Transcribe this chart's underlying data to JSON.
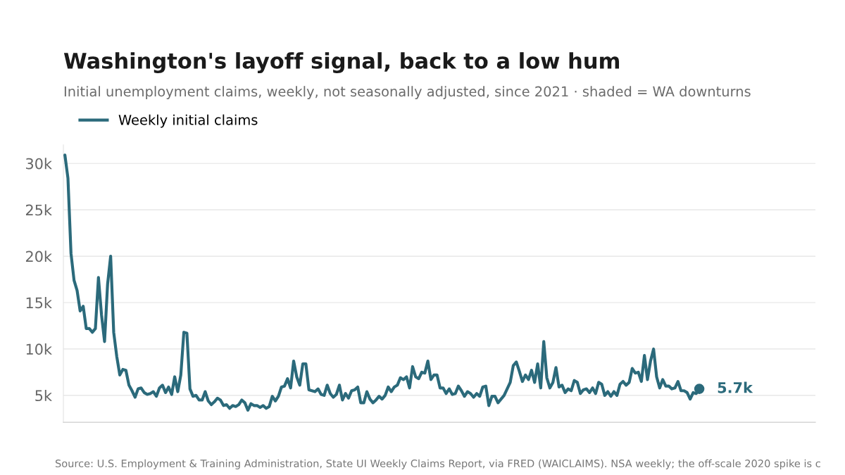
{
  "chart_data": {
    "type": "line",
    "title": "Washington's layoff signal, back to a low hum",
    "subtitle": "Initial unemployment claims, weekly, not seasonally adjusted, since 2021 · shaded = WA downturns",
    "categories": [
      null,
      null,
      null,
      null,
      null,
      null,
      null,
      null,
      null,
      null,
      null,
      null,
      null,
      null,
      null,
      null,
      null,
      null,
      null,
      null,
      null,
      null,
      null,
      null,
      null,
      null,
      null,
      null,
      null,
      null,
      null,
      null,
      null,
      null,
      null,
      null,
      null,
      null,
      null,
      null,
      null,
      null,
      null,
      null,
      null,
      null,
      null,
      null,
      null,
      null,
      null,
      null,
      null,
      null,
      null,
      null,
      null,
      null,
      null,
      null,
      null,
      null,
      null,
      null,
      null,
      null,
      null,
      null,
      null,
      null,
      null,
      null,
      null,
      null,
      null,
      null,
      null,
      null,
      null,
      null,
      null,
      null,
      null,
      null,
      null,
      null,
      null,
      null,
      null,
      null,
      null,
      null,
      null,
      null,
      null,
      null,
      null,
      null,
      null,
      null,
      null,
      null,
      null,
      null,
      null,
      null,
      null,
      null,
      null,
      null,
      null,
      null,
      null,
      null,
      null,
      null,
      null,
      null,
      null,
      null,
      null,
      null,
      null,
      null,
      null,
      null,
      null,
      null,
      null,
      null,
      null,
      null,
      null,
      null,
      null,
      null,
      null,
      null,
      null,
      null,
      null,
      null,
      null,
      null,
      null,
      null,
      null,
      null,
      null,
      null,
      null,
      null,
      null,
      null,
      null,
      null,
      null,
      null,
      null,
      null,
      null,
      null,
      null,
      null,
      null,
      null,
      null,
      null,
      null,
      null,
      null,
      null,
      null,
      null,
      null,
      null,
      null,
      null,
      null,
      null,
      null,
      null,
      null,
      null,
      null,
      null,
      null,
      null,
      null,
      null,
      null,
      null,
      null,
      null,
      null,
      null,
      null,
      null,
      null,
      null,
      null,
      null,
      null,
      null,
      null,
      null,
      null,
      null,
      null
    ],
    "series": [
      {
        "name": "Weekly initial claims",
        "color": "#2b6a7b",
        "values": [
          30900,
          28400,
          20300,
          17400,
          16300,
          14100,
          14600,
          12200,
          12200,
          11800,
          12200,
          17700,
          13700,
          10800,
          17000,
          20000,
          11800,
          9200,
          7200,
          7800,
          7700,
          6100,
          5500,
          4800,
          5700,
          5800,
          5300,
          5100,
          5200,
          5400,
          4900,
          5800,
          6100,
          5300,
          5900,
          5100,
          7000,
          5400,
          7200,
          11800,
          11700,
          5700,
          4900,
          5000,
          4500,
          4500,
          5400,
          4400,
          4000,
          4300,
          4700,
          4500,
          3900,
          4000,
          3600,
          3900,
          3800,
          4000,
          4500,
          4200,
          3400,
          4100,
          3900,
          3900,
          3700,
          3900,
          3600,
          3800,
          4900,
          4400,
          4900,
          5900,
          6000,
          6800,
          5800,
          8700,
          7000,
          6100,
          8400,
          8400,
          5600,
          5500,
          5400,
          5700,
          5100,
          5000,
          6100,
          5200,
          4800,
          5100,
          6100,
          4500,
          5200,
          4700,
          5500,
          5600,
          5900,
          4200,
          4200,
          5400,
          4600,
          4200,
          4500,
          4900,
          4600,
          5000,
          5900,
          5400,
          5900,
          6100,
          6900,
          6700,
          7000,
          5800,
          8100,
          7000,
          6800,
          7500,
          7400,
          8700,
          6700,
          7200,
          7200,
          5800,
          5800,
          5200,
          5700,
          5100,
          5200,
          6000,
          5500,
          4900,
          5400,
          5200,
          4800,
          5200,
          4900,
          5900,
          6000,
          3900,
          4900,
          4900,
          4200,
          4600,
          5000,
          5700,
          6400,
          8200,
          8600,
          7600,
          6500,
          7200,
          6700,
          7700,
          6400,
          8400,
          5800,
          10800,
          6900,
          5800,
          6400,
          8000,
          5900,
          6100,
          5300,
          5700,
          5500,
          6600,
          6400,
          5200,
          5600,
          5700,
          5300,
          5800,
          5200,
          6400,
          6200,
          5000,
          5400,
          4900,
          5400,
          5000,
          6200,
          6500,
          6100,
          6400,
          7900,
          7400,
          7500,
          6500,
          9300,
          6700,
          8700,
          10000,
          7000,
          5800,
          6700,
          6000,
          6000,
          5700,
          5800,
          6500,
          5500,
          5500,
          5300,
          4600,
          5300,
          5200,
          5700
        ]
      }
    ],
    "ylim": [
      2100,
      32000
    ],
    "yticks": [
      {
        "value": 5000,
        "label": "5k"
      },
      {
        "value": 10000,
        "label": "10k"
      },
      {
        "value": 15000,
        "label": "15k"
      },
      {
        "value": 20000,
        "label": "20k"
      },
      {
        "value": 25000,
        "label": "25k"
      },
      {
        "value": 30000,
        "label": "30k"
      }
    ],
    "tick_labels": "y",
    "grid": "y",
    "legend": "top left",
    "marker": "none",
    "line_style": "solid",
    "annotations": [
      "5.7k",
      "Source: U.S. Employment & Training Administration, State UI Weekly Claims Report, via FRED (WAICLAIMS). NSA weekly; the off-scale 2020 spike is c"
    ]
  }
}
